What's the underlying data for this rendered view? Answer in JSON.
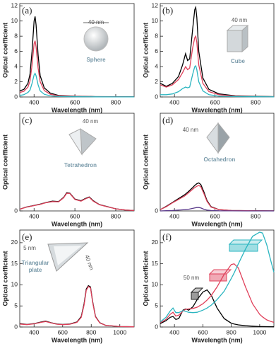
{
  "chart_data": [
    {
      "type": "line",
      "label": "(a)",
      "xlabel": "Wavelength (nm)",
      "ylabel": "Optical coefficient",
      "annotations": [
        "40 nm",
        "Sphere"
      ],
      "xlim": [
        330,
        890
      ],
      "ylim": [
        0,
        12.3
      ],
      "xticks": [
        400,
        600,
        800
      ],
      "yticks": [
        0,
        2,
        4,
        6,
        8,
        10,
        12
      ],
      "x": [
        330,
        350,
        370,
        380,
        390,
        400,
        405,
        410,
        420,
        430,
        450,
        480,
        520,
        600,
        700,
        800,
        890
      ],
      "series": [
        {
          "color": "#000000",
          "values": [
            0.8,
            1.0,
            1.8,
            3.0,
            6.0,
            10.0,
            10.6,
            9.5,
            5.5,
            2.8,
            1.2,
            0.5,
            0.2,
            0.1,
            0.05,
            0.03,
            0.02
          ]
        },
        {
          "color": "#e0405a",
          "values": [
            0.6,
            0.75,
            1.3,
            2.1,
            4.2,
            7.0,
            7.4,
            6.6,
            3.8,
            2.0,
            0.85,
            0.35,
            0.15,
            0.07,
            0.04,
            0.02,
            0.01
          ]
        },
        {
          "color": "#2bb5c0",
          "values": [
            0.2,
            0.3,
            0.6,
            0.9,
            1.8,
            2.9,
            3.1,
            2.8,
            1.6,
            0.8,
            0.35,
            0.15,
            0.06,
            0.03,
            0.02,
            0.01,
            0.01
          ]
        }
      ]
    },
    {
      "type": "line",
      "label": "(b)",
      "xlabel": "Wavelength (nm)",
      "ylabel": "Optical coefficient",
      "annotations": [
        "40 nm",
        "Cube"
      ],
      "xlim": [
        330,
        890
      ],
      "ylim": [
        0,
        12.3
      ],
      "xticks": [
        400,
        600,
        800
      ],
      "yticks": [
        0,
        2,
        4,
        6,
        8,
        10,
        12
      ],
      "x": [
        330,
        360,
        390,
        420,
        440,
        455,
        465,
        475,
        490,
        500,
        505,
        510,
        520,
        540,
        570,
        620,
        700,
        800,
        890
      ],
      "series": [
        {
          "color": "#000000",
          "values": [
            1.8,
            1.4,
            1.8,
            2.7,
            4.2,
            5.7,
            4.8,
            5.0,
            9.0,
            11.5,
            11.8,
            10.5,
            6.0,
            2.5,
            1.0,
            0.4,
            0.15,
            0.08,
            0.05
          ]
        },
        {
          "color": "#e0405a",
          "values": [
            1.6,
            1.3,
            1.6,
            2.3,
            3.2,
            4.0,
            3.6,
            3.8,
            6.5,
            7.8,
            8.0,
            7.2,
            4.2,
            1.8,
            0.7,
            0.3,
            0.1,
            0.05,
            0.03
          ]
        },
        {
          "color": "#2bb5c0",
          "values": [
            0.3,
            0.3,
            0.4,
            0.7,
            1.1,
            1.3,
            1.2,
            1.3,
            3.0,
            4.0,
            4.1,
            3.6,
            2.0,
            0.8,
            0.3,
            0.1,
            0.05,
            0.03,
            0.02
          ]
        }
      ]
    },
    {
      "type": "line",
      "label": "(c)",
      "xlabel": "Wavelength (nm)",
      "ylabel": "Optical coefficient",
      "annotations": [
        "40 nm",
        "Tetrahedron"
      ],
      "xlim": [
        330,
        890
      ],
      "ylim": [
        0,
        23
      ],
      "xticks": [
        400,
        600,
        800
      ],
      "yticks": [
        0
      ],
      "x": [
        330,
        360,
        400,
        430,
        460,
        490,
        520,
        545,
        560,
        575,
        600,
        630,
        650,
        670,
        690,
        720,
        760,
        800,
        850,
        890
      ],
      "series": [
        {
          "color": "#000000",
          "values": [
            0.4,
            0.9,
            1.3,
            1.6,
            2.0,
            2.3,
            2.2,
            3.2,
            4.3,
            4.2,
            2.8,
            2.4,
            2.9,
            3.3,
            2.4,
            1.5,
            1.0,
            0.5,
            0.2,
            0.1
          ]
        },
        {
          "color": "#e0405a",
          "values": [
            0.4,
            0.85,
            1.25,
            1.55,
            1.95,
            2.2,
            2.15,
            3.1,
            4.15,
            4.1,
            2.7,
            2.3,
            2.8,
            3.2,
            2.3,
            1.45,
            0.95,
            0.5,
            0.2,
            0.1
          ]
        }
      ]
    },
    {
      "type": "line",
      "label": "(d)",
      "xlabel": "Wavelength (nm)",
      "ylabel": "Optical coefficient",
      "annotations": [
        "40 nm",
        "Octahedron"
      ],
      "xlim": [
        330,
        890
      ],
      "ylim": [
        0,
        23
      ],
      "xticks": [
        400,
        600,
        800
      ],
      "yticks": [
        0
      ],
      "x": [
        330,
        360,
        390,
        420,
        450,
        470,
        490,
        500,
        510,
        520,
        530,
        545,
        560,
        580,
        620,
        680,
        760,
        890
      ],
      "series": [
        {
          "color": "#000000",
          "values": [
            0.3,
            1.1,
            2.0,
            2.9,
            3.8,
            4.6,
            5.5,
            6.0,
            6.4,
            6.6,
            6.2,
            4.5,
            2.5,
            1.0,
            0.3,
            0.1,
            0.05,
            0.02
          ]
        },
        {
          "color": "#e0405a",
          "values": [
            0.3,
            1.0,
            1.9,
            2.7,
            3.5,
            4.3,
            5.1,
            5.5,
            5.8,
            6.0,
            5.7,
            4.1,
            2.3,
            0.9,
            0.3,
            0.1,
            0.05,
            0.02
          ]
        },
        {
          "color": "#5a3a8a",
          "values": [
            0,
            0.05,
            0.1,
            0.2,
            0.3,
            0.4,
            0.6,
            0.7,
            0.8,
            0.8,
            0.7,
            0.4,
            0.2,
            0.1,
            0.03,
            0.01,
            0,
            0
          ]
        }
      ]
    },
    {
      "type": "line",
      "label": "(e)",
      "xlabel": "Wavelength (nm)",
      "ylabel": "Optical coefficient",
      "annotations": [
        "5 nm",
        "Triangular",
        "plate",
        "40 nm"
      ],
      "xlim": [
        300,
        1100
      ],
      "ylim": [
        0,
        23
      ],
      "xticks": [
        400,
        600,
        800,
        1000
      ],
      "yticks": [
        0,
        5,
        10,
        15,
        20
      ],
      "x": [
        300,
        350,
        400,
        450,
        480,
        520,
        560,
        600,
        650,
        700,
        730,
        750,
        765,
        780,
        795,
        810,
        830,
        860,
        900,
        1000,
        1100
      ],
      "series": [
        {
          "color": "#000000",
          "values": [
            0.8,
            0.6,
            0.8,
            1.2,
            1.4,
            1.0,
            0.7,
            0.6,
            0.7,
            1.2,
            2.5,
            5.5,
            9.0,
            9.8,
            9.5,
            6.0,
            2.5,
            1.0,
            0.4,
            0.1,
            0.05
          ]
        },
        {
          "color": "#e0405a",
          "values": [
            0.7,
            0.55,
            0.75,
            1.1,
            1.3,
            0.95,
            0.65,
            0.55,
            0.65,
            1.1,
            2.3,
            5.2,
            8.7,
            9.6,
            9.3,
            5.8,
            2.4,
            0.95,
            0.4,
            0.1,
            0.05
          ]
        }
      ]
    },
    {
      "type": "line",
      "label": "(f)",
      "xlabel": "Wavelength (nm)",
      "ylabel": "Optical coefficient",
      "annotations": [
        "50 nm"
      ],
      "xlim": [
        300,
        1100
      ],
      "ylim": [
        0,
        23
      ],
      "xticks": [
        400,
        600,
        800,
        1000
      ],
      "yticks": [
        0,
        5,
        10,
        15,
        20
      ],
      "x": [
        300,
        340,
        370,
        390,
        410,
        430,
        460,
        480,
        500,
        530,
        560,
        600,
        630,
        660,
        700,
        750,
        800,
        820,
        850,
        900,
        950,
        1000,
        1020,
        1050,
        1080,
        1100
      ],
      "series": [
        {
          "color": "#000000",
          "values": [
            0.8,
            1.5,
            2.3,
            2.5,
            1.8,
            2.0,
            4.0,
            4.3,
            4.0,
            4.8,
            6.5,
            8.3,
            8.8,
            7.5,
            4.5,
            2.0,
            0.9,
            0.7,
            0.5,
            0.3,
            0.2,
            0.1,
            0.1,
            0.08,
            0.06,
            0.05
          ]
        },
        {
          "color": "#e0405a",
          "values": [
            1.0,
            1.8,
            3.0,
            3.5,
            2.6,
            2.8,
            3.8,
            4.2,
            4.3,
            4.4,
            4.7,
            5.5,
            6.4,
            7.5,
            9.5,
            12.5,
            14.8,
            15.0,
            14.0,
            9.5,
            5.5,
            3.0,
            2.4,
            1.7,
            1.3,
            1.1
          ]
        },
        {
          "color": "#2bb5c0",
          "values": [
            1.2,
            2.3,
            3.8,
            4.5,
            3.4,
            3.4,
            3.9,
            3.7,
            3.5,
            3.4,
            3.5,
            4.0,
            4.5,
            5.2,
            6.5,
            8.5,
            11.5,
            12.8,
            15.0,
            18.5,
            21.5,
            22.5,
            22.3,
            19.5,
            15.5,
            13.0
          ]
        }
      ]
    }
  ]
}
